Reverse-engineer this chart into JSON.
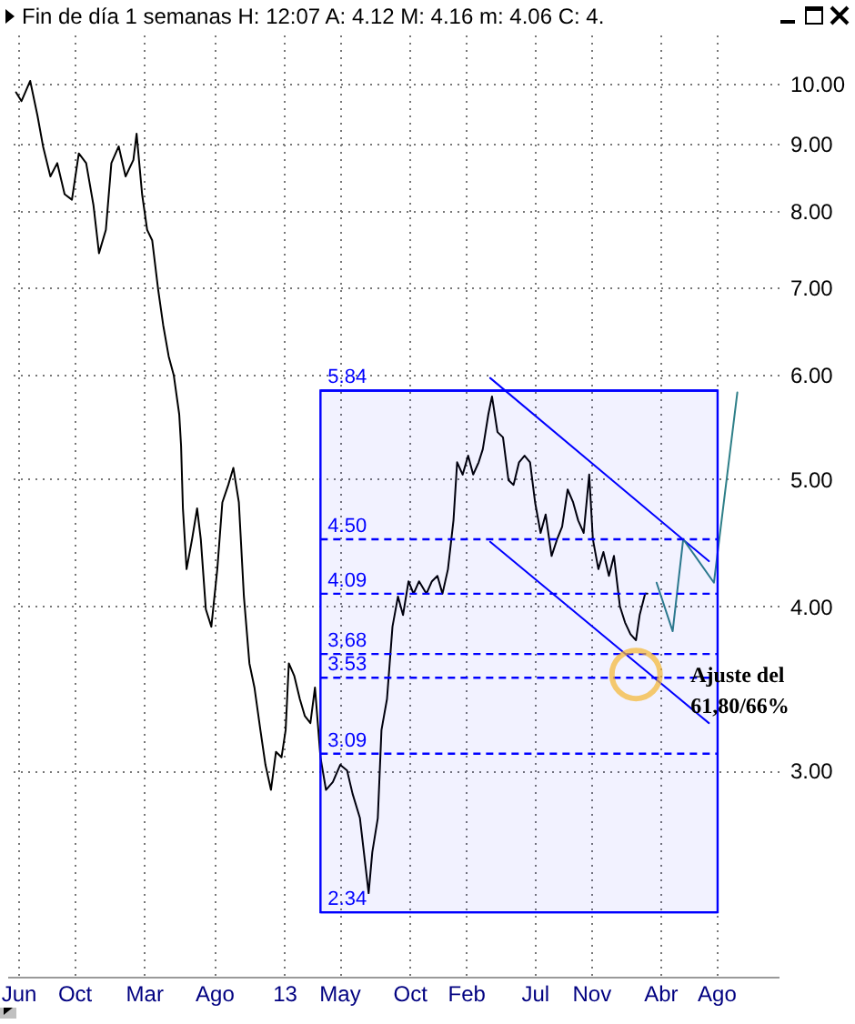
{
  "chart_data": {
    "type": "line",
    "title": "Fin de día 1 semanas  H: 12:07  A: 4.12  M: 4.16  m: 4.06  C: 4.",
    "log": "y",
    "grid": true,
    "xlim": [
      "2011-05-08",
      "2015-12-15"
    ],
    "xticks": [
      {
        "value": "2011-06-01",
        "label": "Jun"
      },
      {
        "value": "2011-10-01",
        "label": "Oct"
      },
      {
        "value": "2012-03-01",
        "label": "Mar"
      },
      {
        "value": "2012-08-01",
        "label": "Ago"
      },
      {
        "value": "2013-01-01",
        "label": "13"
      },
      {
        "value": "2013-05-01",
        "label": "May"
      },
      {
        "value": "2013-10-01",
        "label": "Oct"
      },
      {
        "value": "2014-02-01",
        "label": "Feb"
      },
      {
        "value": "2014-07-01",
        "label": "Jul"
      },
      {
        "value": "2014-11-01",
        "label": "Nov"
      },
      {
        "value": "2015-04-01",
        "label": "Abr"
      },
      {
        "value": "2015-08-01",
        "label": "Ago"
      }
    ],
    "ylim": [
      2.09,
      10.9
    ],
    "yticks": [
      {
        "value": 3,
        "label": "3.00"
      },
      {
        "value": 4,
        "label": "4.00"
      },
      {
        "value": 5,
        "label": "5.00"
      },
      {
        "value": 6,
        "label": "6.00"
      },
      {
        "value": 7,
        "label": "7.00"
      },
      {
        "value": 8,
        "label": "8.00"
      },
      {
        "value": 9,
        "label": "9.00"
      },
      {
        "value": 10,
        "label": "10.00"
      }
    ],
    "series": [
      {
        "color": "#000000",
        "x": [
          "2011-05-27",
          "2011-06-08",
          "2011-06-27",
          "2011-07-13",
          "2011-07-25",
          "2011-08-10",
          "2011-08-25",
          "2011-09-10",
          "2011-09-26",
          "2011-10-11",
          "2011-10-27",
          "2011-11-12",
          "2011-11-24",
          "2011-12-09",
          "2011-12-21",
          "2012-01-06",
          "2012-01-21",
          "2012-02-07",
          "2012-02-14",
          "2012-02-26",
          "2012-03-08",
          "2012-03-19",
          "2012-04-01",
          "2012-04-12",
          "2012-04-24",
          "2012-05-05",
          "2012-05-17",
          "2012-05-21",
          "2012-05-25",
          "2012-06-02",
          "2012-06-14",
          "2012-06-25",
          "2012-07-03",
          "2012-07-14",
          "2012-07-26",
          "2012-08-08",
          "2012-08-19",
          "2012-09-01",
          "2012-09-12",
          "2012-09-24",
          "2012-10-05",
          "2012-10-17",
          "2012-10-28",
          "2012-11-10",
          "2012-11-21",
          "2012-12-03",
          "2012-12-14",
          "2012-12-26",
          "2013-01-04",
          "2013-01-11",
          "2013-01-23",
          "2013-02-04",
          "2013-02-15",
          "2013-02-27",
          "2013-03-09",
          "2013-03-21",
          "2013-04-02",
          "2013-04-17",
          "2013-05-03",
          "2013-05-18",
          "2013-05-30",
          "2013-06-15",
          "2013-06-27",
          "2013-07-04",
          "2013-07-12",
          "2013-07-24",
          "2013-08-01",
          "2013-08-13",
          "2013-08-25",
          "2013-09-06",
          "2013-09-17",
          "2013-09-29",
          "2013-10-10",
          "2013-10-22",
          "2013-11-07",
          "2013-11-19",
          "2013-12-01",
          "2013-12-12",
          "2013-12-24",
          "2014-01-05",
          "2014-01-13",
          "2014-01-25",
          "2014-02-06",
          "2014-02-17",
          "2014-03-01",
          "2014-03-10",
          "2014-03-22",
          "2014-03-30",
          "2014-04-11",
          "2014-04-23",
          "2014-05-05",
          "2014-05-16",
          "2014-05-28",
          "2014-06-09",
          "2014-06-21",
          "2014-07-02",
          "2014-07-14",
          "2014-07-25",
          "2014-08-07",
          "2014-08-19",
          "2014-08-30",
          "2014-09-11",
          "2014-09-23",
          "2014-10-04",
          "2014-10-16",
          "2014-10-28",
          "2014-11-05",
          "2014-11-17",
          "2014-11-28",
          "2014-12-10",
          "2014-12-21",
          "2015-01-03",
          "2015-01-14",
          "2015-01-26",
          "2015-02-07",
          "2015-02-15",
          "2015-02-27",
          "2015-03-04"
        ],
        "values": [
          9.85,
          9.7,
          10.05,
          9.45,
          8.96,
          8.5,
          8.7,
          8.24,
          8.16,
          8.85,
          8.7,
          8.08,
          7.43,
          7.74,
          8.7,
          8.96,
          8.5,
          8.75,
          9.16,
          8.24,
          7.74,
          7.6,
          6.97,
          6.55,
          6.2,
          6.0,
          5.6,
          5.3,
          4.75,
          4.27,
          4.5,
          4.75,
          4.5,
          3.98,
          3.86,
          4.27,
          4.8,
          4.95,
          5.1,
          4.8,
          4.07,
          3.62,
          3.47,
          3.22,
          3.03,
          2.9,
          3.1,
          3.07,
          3.22,
          3.62,
          3.54,
          3.4,
          3.3,
          3.26,
          3.47,
          3.07,
          2.9,
          2.94,
          3.03,
          3.0,
          2.88,
          2.76,
          2.54,
          2.42,
          2.6,
          2.76,
          3.22,
          3.4,
          3.86,
          4.07,
          3.94,
          4.18,
          4.09,
          4.18,
          4.09,
          4.18,
          4.22,
          4.09,
          4.27,
          4.65,
          5.15,
          5.04,
          5.21,
          5.04,
          5.15,
          5.27,
          5.6,
          5.78,
          5.43,
          5.38,
          4.99,
          4.95,
          5.15,
          5.21,
          5.15,
          4.8,
          4.55,
          4.7,
          4.37,
          4.5,
          4.6,
          4.91,
          4.8,
          4.65,
          4.55,
          5.04,
          4.5,
          4.27,
          4.4,
          4.22,
          4.37,
          4.0,
          3.89,
          3.81,
          3.77,
          3.94,
          4.09,
          4.09
        ]
      },
      {
        "color": "#0000ff",
        "x": [
          "2014-03-26",
          "2015-07-16"
        ],
        "values": [
          5.97,
          4.33
        ]
      },
      {
        "color": "#0000ff",
        "x": [
          "2014-03-26",
          "2015-07-16"
        ],
        "values": [
          4.48,
          3.26
        ]
      },
      {
        "color": "#2e7f88",
        "x": [
          "2015-03-24",
          "2015-04-28",
          "2015-05-21",
          "2015-07-27",
          "2015-09-16"
        ],
        "values": [
          4.17,
          3.83,
          4.5,
          4.17,
          5.82
        ]
      }
    ],
    "bands": [
      {
        "axis": "x",
        "from": "2013-03-21",
        "to": "2015-08-04",
        "color": "#0000ff"
      }
    ],
    "ref_lines": [
      {
        "axis": "y",
        "value": 5.84,
        "label": "5.84",
        "color": "#0000ff",
        "line_style": "solid"
      },
      {
        "axis": "y",
        "value": 4.5,
        "label": "4.50",
        "color": "#0000ff",
        "line_style": "dashed"
      },
      {
        "axis": "y",
        "value": 4.09,
        "label": "4.09",
        "color": "#0000ff",
        "line_style": "dashed"
      },
      {
        "axis": "y",
        "value": 3.68,
        "label": "3.68",
        "color": "#0000ff",
        "line_style": "dashed"
      },
      {
        "axis": "y",
        "value": 3.53,
        "label": "3.53",
        "color": "#0000ff",
        "line_style": "dashed"
      },
      {
        "axis": "y",
        "value": 3.09,
        "label": "3.09",
        "color": "#0000ff",
        "line_style": "dashed"
      },
      {
        "axis": "y",
        "value": 2.34,
        "label": "2.34",
        "color": "#0000ff",
        "line_style": "solid"
      }
    ],
    "annotations": [
      {
        "text": "Ajuste del\n61,80/66%",
        "x": "2015-02-07",
        "y": 3.55
      }
    ]
  }
}
